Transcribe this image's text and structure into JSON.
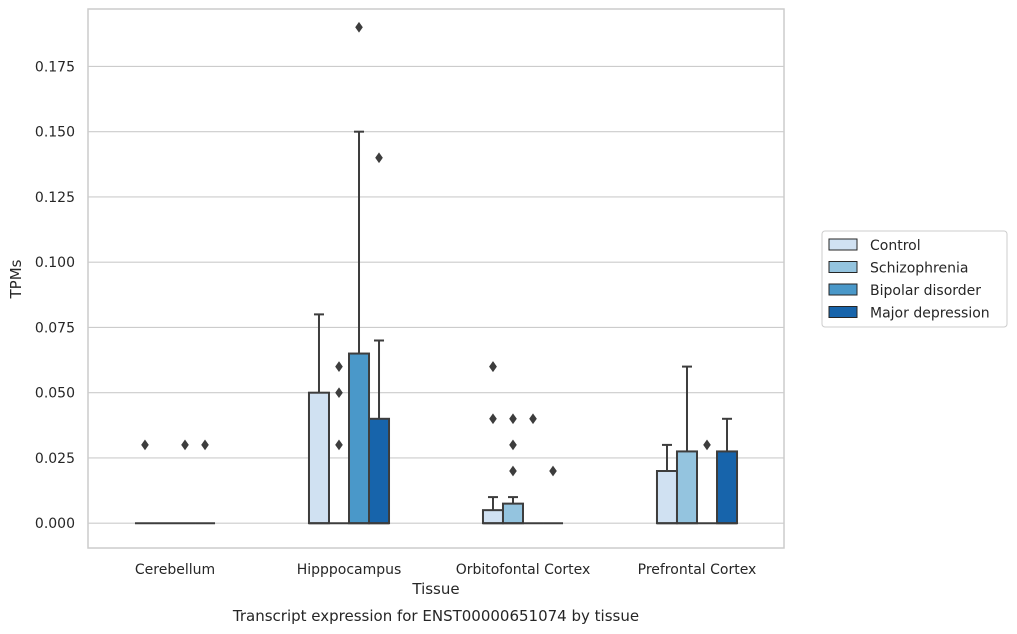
{
  "chart_data": {
    "type": "box",
    "title": "",
    "caption": "Transcript expression for ENST00000651074 by tissue",
    "xlabel": "Tissue",
    "ylabel": "TPMs",
    "ylim": [
      -0.0095,
      0.197
    ],
    "yticks": [
      0.0,
      0.025,
      0.05,
      0.075,
      0.1,
      0.125,
      0.15,
      0.175
    ],
    "ytick_labels": [
      "0.000",
      "0.025",
      "0.050",
      "0.075",
      "0.100",
      "0.125",
      "0.150",
      "0.175"
    ],
    "grid": "horizontal",
    "legend_position": "right",
    "categories": [
      "Cerebellum",
      "Hipppocampus",
      "Orbitofontal Cortex",
      "Prefrontal Cortex"
    ],
    "series": [
      {
        "name": "Control",
        "color": "#d0e1f2",
        "boxes": [
          {
            "q1": 0.0,
            "median": 0.0,
            "q3": 0.0,
            "whisker_low": 0.0,
            "whisker_high": 0.0,
            "outliers": [
              0.03
            ]
          },
          {
            "q1": 0.0,
            "median": 0.0,
            "q3": 0.05,
            "whisker_low": 0.0,
            "whisker_high": 0.08,
            "outliers": []
          },
          {
            "q1": 0.0,
            "median": 0.0,
            "q3": 0.005,
            "whisker_low": 0.0,
            "whisker_high": 0.01,
            "outliers": [
              0.04,
              0.06,
              0.06
            ]
          },
          {
            "q1": 0.0,
            "median": 0.0,
            "q3": 0.02,
            "whisker_low": 0.0,
            "whisker_high": 0.03,
            "outliers": []
          }
        ]
      },
      {
        "name": "Schizophrenia",
        "color": "#94c4df",
        "boxes": [
          {
            "q1": 0.0,
            "median": 0.0,
            "q3": 0.0,
            "whisker_low": 0.0,
            "whisker_high": 0.0,
            "outliers": []
          },
          {
            "q1": 0.0,
            "median": 0.0,
            "q3": 0.0,
            "whisker_low": 0.0,
            "whisker_high": 0.0,
            "outliers": [
              0.03,
              0.05,
              0.06
            ]
          },
          {
            "q1": 0.0,
            "median": 0.0,
            "q3": 0.0075,
            "whisker_low": 0.0,
            "whisker_high": 0.01,
            "outliers": [
              0.02,
              0.03,
              0.04
            ]
          },
          {
            "q1": 0.0,
            "median": 0.0,
            "q3": 0.0275,
            "whisker_low": 0.0,
            "whisker_high": 0.06,
            "outliers": []
          }
        ]
      },
      {
        "name": "Bipolar disorder",
        "color": "#4a98c9",
        "boxes": [
          {
            "q1": 0.0,
            "median": 0.0,
            "q3": 0.0,
            "whisker_low": 0.0,
            "whisker_high": 0.0,
            "outliers": [
              0.03
            ]
          },
          {
            "q1": 0.0,
            "median": 0.0,
            "q3": 0.065,
            "whisker_low": 0.0,
            "whisker_high": 0.15,
            "outliers": [
              0.19
            ]
          },
          {
            "q1": 0.0,
            "median": 0.0,
            "q3": 0.0,
            "whisker_low": 0.0,
            "whisker_high": 0.0,
            "outliers": [
              0.04
            ]
          },
          {
            "q1": 0.0,
            "median": 0.0,
            "q3": 0.0,
            "whisker_low": 0.0,
            "whisker_high": 0.0,
            "outliers": [
              0.03
            ]
          }
        ]
      },
      {
        "name": "Major depression",
        "color": "#1764ab",
        "boxes": [
          {
            "q1": 0.0,
            "median": 0.0,
            "q3": 0.0,
            "whisker_low": 0.0,
            "whisker_high": 0.0,
            "outliers": [
              0.03
            ]
          },
          {
            "q1": 0.0,
            "median": 0.0,
            "q3": 0.04,
            "whisker_low": 0.0,
            "whisker_high": 0.07,
            "outliers": [
              0.14
            ]
          },
          {
            "q1": 0.0,
            "median": 0.0,
            "q3": 0.0,
            "whisker_low": 0.0,
            "whisker_high": 0.0,
            "outliers": [
              0.02
            ]
          },
          {
            "q1": 0.0,
            "median": 0.0,
            "q3": 0.0275,
            "whisker_low": 0.0,
            "whisker_high": 0.04,
            "outliers": []
          }
        ]
      }
    ]
  }
}
